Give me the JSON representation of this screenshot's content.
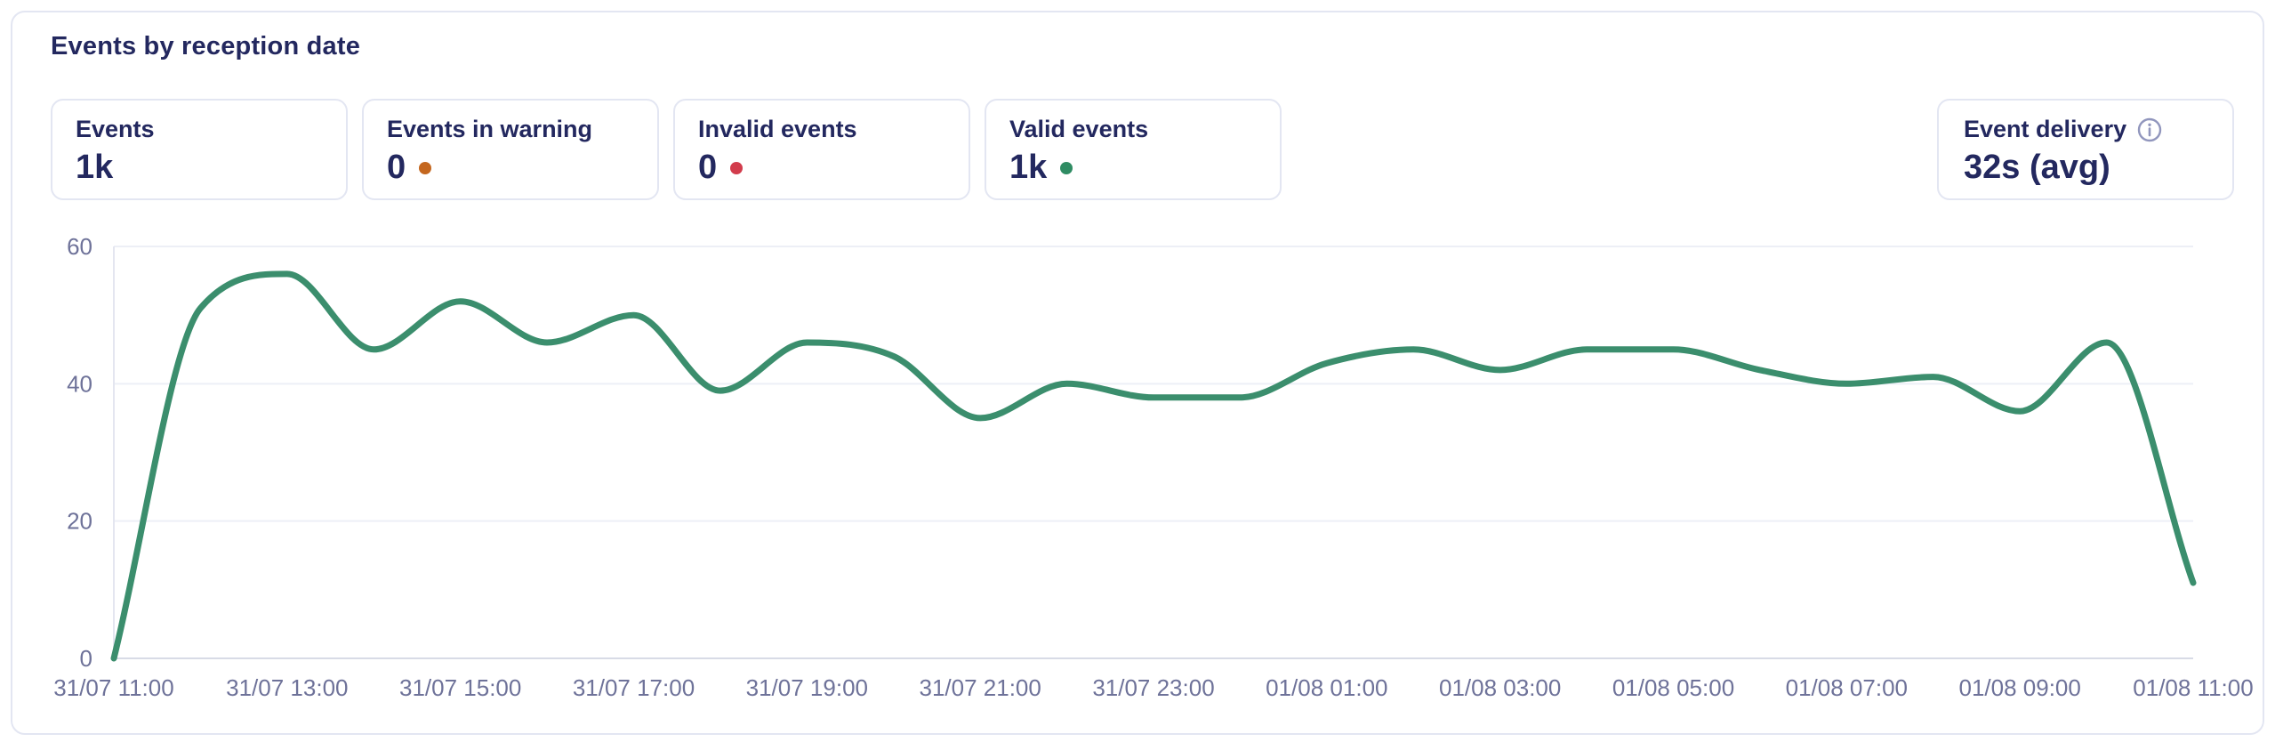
{
  "panel": {
    "title": "Events by reception date"
  },
  "stats": [
    {
      "label": "Events",
      "value": "1k"
    },
    {
      "label": "Events in warning",
      "value": "0",
      "dot_color": "#c4671f"
    },
    {
      "label": "Invalid events",
      "value": "0",
      "dot_color": "#d23c4c"
    },
    {
      "label": "Valid events",
      "value": "1k",
      "dot_color": "#2f8c63"
    }
  ],
  "delivery": {
    "label": "Event delivery",
    "value": "32s (avg)",
    "icon": "info-icon"
  },
  "colors": {
    "text_navy": "#23285f",
    "axis_label": "#6e7299",
    "gridline": "#edeff6",
    "axis_line": "#d8dbe6",
    "y_axis_line": "#e4e6f0",
    "line_green": "#3b8e6d",
    "panel_border": "#e3e6f2"
  },
  "chart_data": {
    "type": "line",
    "title": "Events by reception date",
    "smooth": true,
    "grid": true,
    "legend": "none",
    "line_color": "#3b8e6d",
    "ylim": [
      0,
      60
    ],
    "yticks": [
      0,
      20,
      40,
      60
    ],
    "x": [
      "31/07 11:00",
      "31/07 12:00",
      "31/07 13:00",
      "31/07 14:00",
      "31/07 15:00",
      "31/07 16:00",
      "31/07 17:00",
      "31/07 18:00",
      "31/07 19:00",
      "31/07 20:00",
      "31/07 21:00",
      "31/07 22:00",
      "31/07 23:00",
      "01/08 00:00",
      "01/08 01:00",
      "01/08 02:00",
      "01/08 03:00",
      "01/08 04:00",
      "01/08 05:00",
      "01/08 06:00",
      "01/08 07:00",
      "01/08 08:00",
      "01/08 09:00",
      "01/08 10:00",
      "01/08 11:00"
    ],
    "values": [
      0,
      51,
      56,
      45,
      52,
      46,
      50,
      39,
      46,
      44,
      35,
      40,
      38,
      38,
      43,
      45,
      42,
      45,
      45,
      42,
      40,
      41,
      36,
      46,
      11
    ],
    "x_tick_labels": [
      "31/07 11:00",
      "31/07 13:00",
      "31/07 15:00",
      "31/07 17:00",
      "31/07 19:00",
      "31/07 21:00",
      "31/07 23:00",
      "01/08 01:00",
      "01/08 03:00",
      "01/08 05:00",
      "01/08 07:00",
      "01/08 09:00",
      "01/08 11:00"
    ]
  }
}
